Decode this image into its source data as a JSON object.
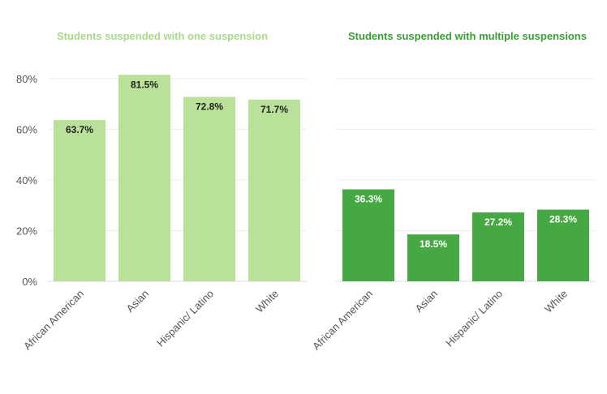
{
  "colors": {
    "one_bar": "#b9e199",
    "one_title": "#a9d98b",
    "multi_bar": "#45a843",
    "multi_title": "#3a9e36",
    "grid": "#eeeeee",
    "axis": "#dddddd",
    "label_dark": "#222222",
    "label_light": "#ffffff"
  },
  "chart_data": [
    {
      "type": "bar",
      "title": "Students suspended with one suspension",
      "categories": [
        "African American",
        "Asian",
        "Hispanic/ Latino",
        "White"
      ],
      "values": [
        63.7,
        81.5,
        72.8,
        71.7
      ],
      "data_labels": [
        "63.7%",
        "81.5%",
        "72.8%",
        "71.7%"
      ],
      "yticks": [
        "0%",
        "20%",
        "40%",
        "60%",
        "80%"
      ],
      "ylim": [
        0,
        90
      ],
      "grid": true,
      "show_y_axis_labels": true
    },
    {
      "type": "bar",
      "title": "Students suspended with multiple suspensions",
      "categories": [
        "African American",
        "Asian",
        "Hispanic/ Latino",
        "White"
      ],
      "values": [
        36.3,
        18.5,
        27.2,
        28.3
      ],
      "data_labels": [
        "36.3%",
        "18.5%",
        "27.2%",
        "28.3%"
      ],
      "ylim": [
        0,
        90
      ],
      "grid": true,
      "show_y_axis_labels": false
    }
  ]
}
